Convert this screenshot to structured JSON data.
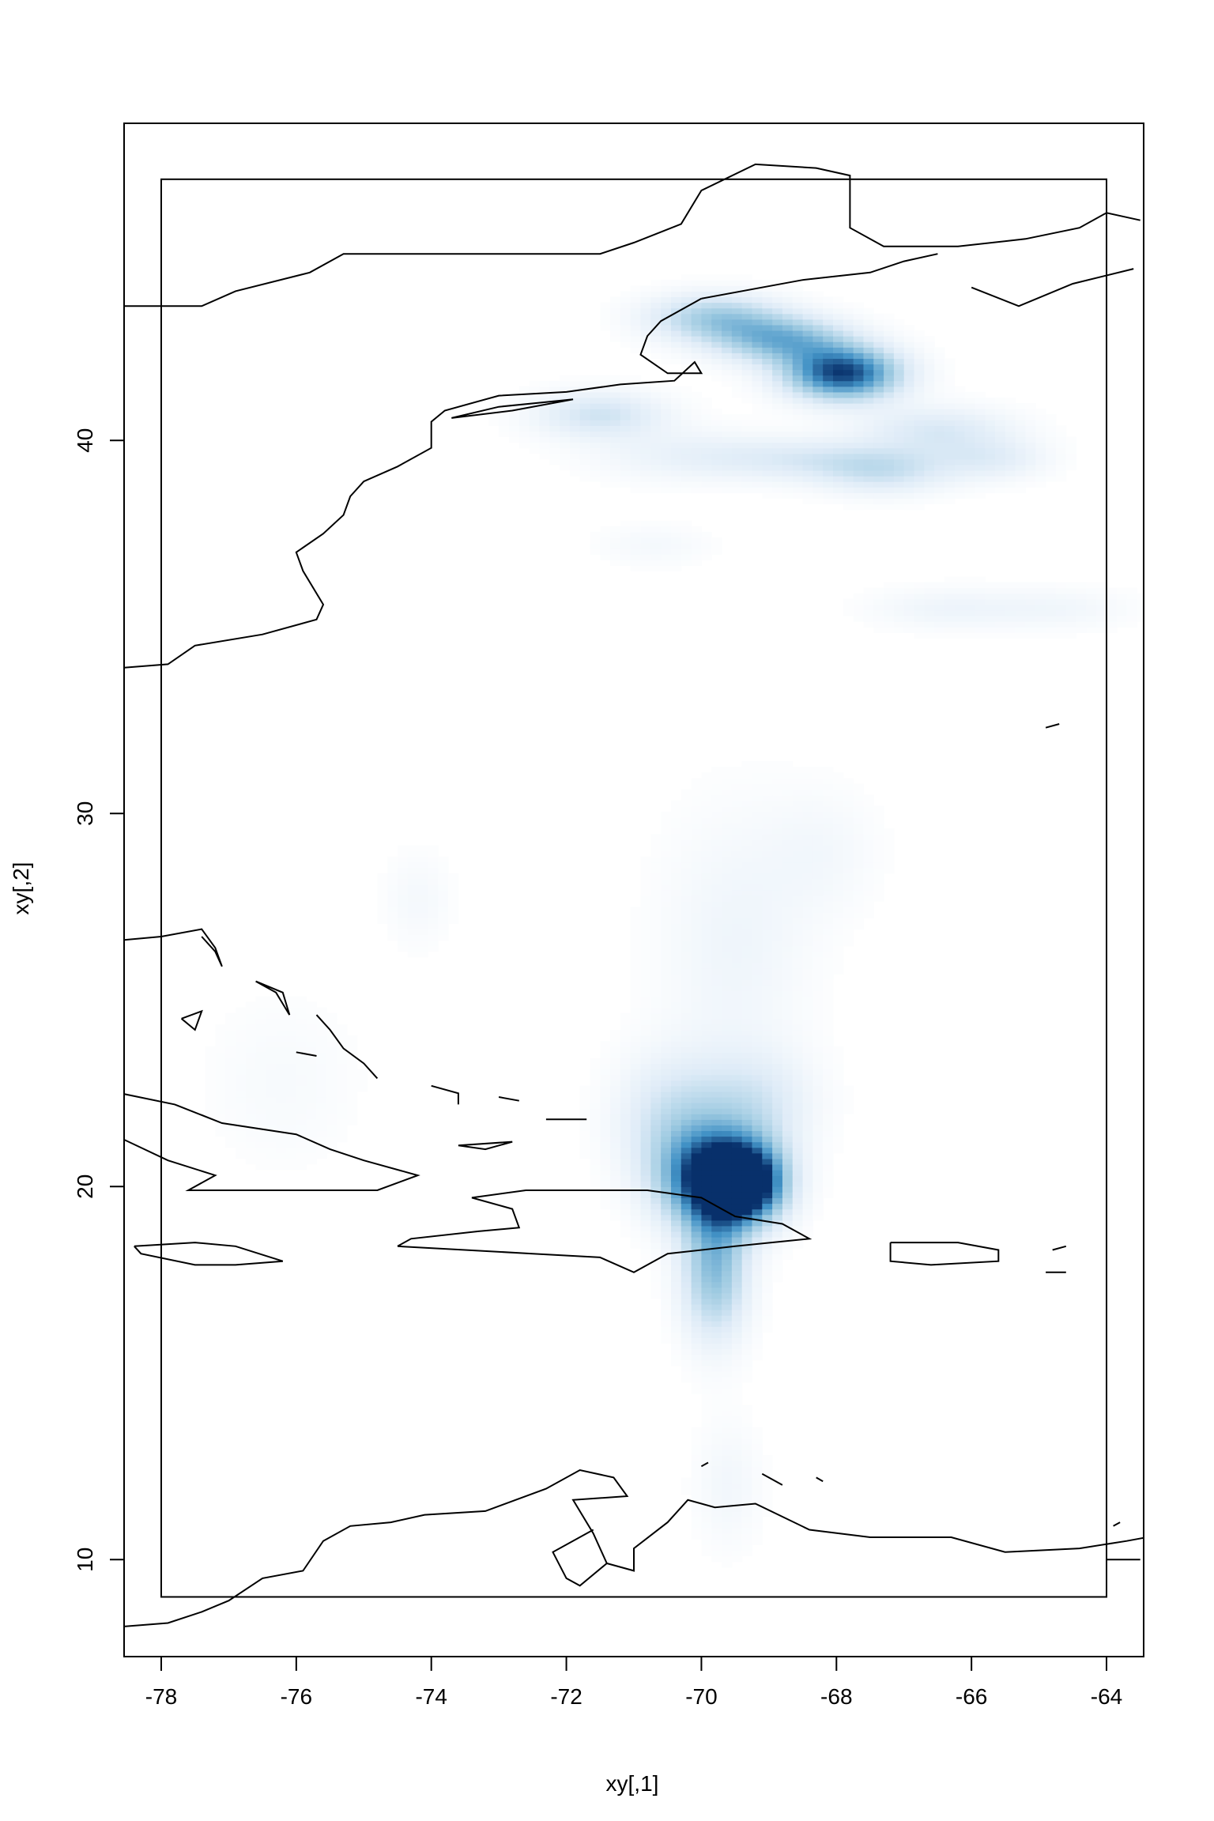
{
  "chart_data": {
    "type": "heatmap",
    "title": "",
    "xlabel": "xy[,1]",
    "ylabel": "xy[,2]",
    "xlim": [
      -78.55,
      -63.45
    ],
    "ylim": [
      7.4,
      48.5
    ],
    "x_ticks": [
      -78,
      -76,
      -74,
      -72,
      -70,
      -68,
      -66,
      -64
    ],
    "y_ticks": [
      10,
      20,
      30,
      40
    ],
    "x_tick_labels": [
      "-78",
      "-76",
      "-74",
      "-72",
      "-70",
      "-68",
      "-66",
      "-64"
    ],
    "y_tick_labels": [
      "10",
      "20",
      "30",
      "40"
    ],
    "inner_box": {
      "x": [
        -78,
        -64
      ],
      "y": [
        9,
        47
      ]
    },
    "color_scale": [
      "#ffffff",
      "#deebf7",
      "#9ecae1",
      "#4292c6",
      "#08306b"
    ],
    "density_peaks": [
      {
        "x": -69.8,
        "y": 20.2,
        "intensity": 1.0,
        "spread_x": 0.55,
        "spread_y": 0.9
      },
      {
        "x": -69.3,
        "y": 20.1,
        "intensity": 0.85,
        "spread_x": 0.4,
        "spread_y": 0.7
      },
      {
        "x": -69.8,
        "y": 17.8,
        "intensity": 0.55,
        "spread_x": 0.35,
        "spread_y": 1.3
      },
      {
        "x": -70.4,
        "y": 21.8,
        "intensity": 0.3,
        "spread_x": 0.6,
        "spread_y": 1.2
      },
      {
        "x": -69.2,
        "y": 22.2,
        "intensity": 0.25,
        "spread_x": 0.6,
        "spread_y": 1.0
      },
      {
        "x": -69.5,
        "y": 26.5,
        "intensity": 0.12,
        "spread_x": 0.8,
        "spread_y": 2.5
      },
      {
        "x": -68.2,
        "y": 29.0,
        "intensity": 0.08,
        "spread_x": 0.6,
        "spread_y": 1.2
      },
      {
        "x": -69.6,
        "y": 12.0,
        "intensity": 0.1,
        "spread_x": 0.35,
        "spread_y": 1.2
      },
      {
        "x": -67.9,
        "y": 41.8,
        "intensity": 0.95,
        "spread_x": 0.6,
        "spread_y": 0.5
      },
      {
        "x": -68.8,
        "y": 42.7,
        "intensity": 0.55,
        "spread_x": 0.7,
        "spread_y": 0.45
      },
      {
        "x": -69.8,
        "y": 43.3,
        "intensity": 0.45,
        "spread_x": 0.7,
        "spread_y": 0.45
      },
      {
        "x": -71.5,
        "y": 40.7,
        "intensity": 0.3,
        "spread_x": 0.7,
        "spread_y": 0.45
      },
      {
        "x": -66.5,
        "y": 40.3,
        "intensity": 0.25,
        "spread_x": 0.8,
        "spread_y": 0.45
      },
      {
        "x": -67.3,
        "y": 39.2,
        "intensity": 0.3,
        "spread_x": 0.7,
        "spread_y": 0.45
      },
      {
        "x": -68.5,
        "y": 39.5,
        "intensity": 0.2,
        "spread_x": 0.9,
        "spread_y": 0.4
      },
      {
        "x": -65.7,
        "y": 39.5,
        "intensity": 0.2,
        "spread_x": 0.6,
        "spread_y": 0.4
      },
      {
        "x": -70.2,
        "y": 39.6,
        "intensity": 0.15,
        "spread_x": 1.0,
        "spread_y": 0.5
      },
      {
        "x": -66.4,
        "y": 35.5,
        "intensity": 0.12,
        "spread_x": 0.8,
        "spread_y": 0.4
      },
      {
        "x": -64.7,
        "y": 35.5,
        "intensity": 0.1,
        "spread_x": 0.8,
        "spread_y": 0.4
      },
      {
        "x": -70.7,
        "y": 37.2,
        "intensity": 0.08,
        "spread_x": 0.6,
        "spread_y": 0.4
      },
      {
        "x": -74.2,
        "y": 27.7,
        "intensity": 0.08,
        "spread_x": 0.35,
        "spread_y": 0.9
      },
      {
        "x": -76.2,
        "y": 22.8,
        "intensity": 0.06,
        "spread_x": 0.8,
        "spread_y": 1.6
      }
    ],
    "coastlines": [
      [
        [
          -78.6,
          43.6
        ],
        [
          -77.4,
          43.6
        ],
        [
          -76.9,
          44.0
        ],
        [
          -75.8,
          44.5
        ],
        [
          -75.3,
          45.0
        ],
        [
          -74.4,
          45.0
        ],
        [
          -71.5,
          45.0
        ],
        [
          -71.0,
          45.3
        ],
        [
          -70.3,
          45.8
        ],
        [
          -70.0,
          46.7
        ],
        [
          -69.2,
          47.4
        ],
        [
          -68.3,
          47.3
        ],
        [
          -67.8,
          47.1
        ],
        [
          -67.8,
          45.7
        ],
        [
          -67.3,
          45.2
        ],
        [
          -66.2,
          45.2
        ],
        [
          -65.2,
          45.4
        ],
        [
          -64.4,
          45.7
        ],
        [
          -64.0,
          46.1
        ],
        [
          -63.5,
          45.9
        ]
      ],
      [
        [
          -70.0,
          43.8
        ],
        [
          -70.6,
          43.2
        ],
        [
          -70.8,
          42.8
        ],
        [
          -70.9,
          42.3
        ],
        [
          -70.5,
          41.8
        ],
        [
          -70.0,
          41.8
        ],
        [
          -70.1,
          42.1
        ],
        [
          -70.4,
          41.6
        ],
        [
          -71.2,
          41.5
        ],
        [
          -72.0,
          41.3
        ],
        [
          -73.0,
          41.2
        ],
        [
          -73.8,
          40.8
        ],
        [
          -74.0,
          40.5
        ],
        [
          -74.0,
          39.8
        ],
        [
          -74.5,
          39.3
        ],
        [
          -75.0,
          38.9
        ],
        [
          -75.2,
          38.5
        ],
        [
          -75.3,
          38.0
        ],
        [
          -75.6,
          37.5
        ],
        [
          -76.0,
          37.0
        ],
        [
          -75.9,
          36.5
        ],
        [
          -75.6,
          35.6
        ],
        [
          -75.7,
          35.2
        ],
        [
          -76.5,
          34.8
        ],
        [
          -77.5,
          34.5
        ],
        [
          -77.9,
          34.0
        ],
        [
          -78.6,
          33.9
        ]
      ],
      [
        [
          -71.9,
          41.1
        ],
        [
          -73.0,
          40.9
        ],
        [
          -73.7,
          40.6
        ],
        [
          -72.8,
          40.8
        ],
        [
          -71.9,
          41.1
        ]
      ],
      [
        [
          -70.0,
          43.8
        ],
        [
          -68.5,
          44.3
        ],
        [
          -67.5,
          44.5
        ],
        [
          -67.0,
          44.8
        ],
        [
          -66.5,
          45.0
        ]
      ],
      [
        [
          -66.0,
          44.1
        ],
        [
          -65.3,
          43.6
        ],
        [
          -64.5,
          44.2
        ],
        [
          -63.6,
          44.6
        ]
      ],
      [
        [
          -64.7,
          32.4
        ],
        [
          -64.9,
          32.3
        ]
      ],
      [
        [
          -78.6,
          26.6
        ],
        [
          -78.0,
          26.7
        ],
        [
          -77.4,
          26.9
        ],
        [
          -77.2,
          26.4
        ],
        [
          -77.1,
          25.9
        ],
        [
          -77.2,
          26.3
        ],
        [
          -77.4,
          26.7
        ]
      ],
      [
        [
          -77.7,
          24.5
        ],
        [
          -77.4,
          24.7
        ],
        [
          -77.5,
          24.2
        ],
        [
          -77.7,
          24.5
        ]
      ],
      [
        [
          -76.6,
          25.5
        ],
        [
          -76.2,
          25.2
        ],
        [
          -76.1,
          24.6
        ],
        [
          -76.3,
          25.2
        ],
        [
          -76.6,
          25.5
        ]
      ],
      [
        [
          -75.7,
          24.6
        ],
        [
          -75.5,
          24.2
        ],
        [
          -75.3,
          23.7
        ],
        [
          -75.0,
          23.3
        ],
        [
          -74.8,
          22.9
        ]
      ],
      [
        [
          -76.0,
          23.6
        ],
        [
          -75.7,
          23.5
        ]
      ],
      [
        [
          -74.0,
          22.7
        ],
        [
          -73.6,
          22.5
        ],
        [
          -73.6,
          22.2
        ]
      ],
      [
        [
          -73.0,
          22.4
        ],
        [
          -72.7,
          22.3
        ]
      ],
      [
        [
          -72.3,
          21.8
        ],
        [
          -71.7,
          21.8
        ]
      ],
      [
        [
          -73.6,
          21.1
        ],
        [
          -73.2,
          21.0
        ],
        [
          -72.8,
          21.2
        ],
        [
          -73.6,
          21.1
        ]
      ],
      [
        [
          -78.6,
          22.5
        ],
        [
          -77.8,
          22.2
        ],
        [
          -77.1,
          21.7
        ],
        [
          -76.0,
          21.4
        ],
        [
          -75.5,
          21.0
        ],
        [
          -75.0,
          20.7
        ],
        [
          -74.2,
          20.3
        ],
        [
          -74.8,
          19.9
        ],
        [
          -75.8,
          19.9
        ],
        [
          -76.6,
          19.9
        ],
        [
          -77.6,
          19.9
        ],
        [
          -77.2,
          20.3
        ],
        [
          -77.9,
          20.7
        ],
        [
          -78.6,
          21.3
        ]
      ],
      [
        [
          -78.4,
          18.4
        ],
        [
          -77.5,
          18.5
        ],
        [
          -76.9,
          18.4
        ],
        [
          -76.2,
          18.0
        ],
        [
          -76.9,
          17.9
        ],
        [
          -77.5,
          17.9
        ],
        [
          -78.3,
          18.2
        ],
        [
          -78.4,
          18.4
        ]
      ],
      [
        [
          -74.5,
          18.4
        ],
        [
          -73.5,
          18.3
        ],
        [
          -72.5,
          18.2
        ],
        [
          -71.5,
          18.1
        ],
        [
          -71.0,
          17.7
        ],
        [
          -70.5,
          18.2
        ],
        [
          -69.5,
          18.4
        ],
        [
          -68.4,
          18.6
        ],
        [
          -68.8,
          19.0
        ],
        [
          -69.5,
          19.2
        ],
        [
          -70.0,
          19.7
        ],
        [
          -70.8,
          19.9
        ],
        [
          -71.5,
          19.9
        ],
        [
          -72.6,
          19.9
        ],
        [
          -73.4,
          19.7
        ],
        [
          -72.8,
          19.4
        ],
        [
          -72.7,
          18.9
        ],
        [
          -73.3,
          18.8
        ],
        [
          -74.3,
          18.6
        ],
        [
          -74.5,
          18.4
        ]
      ],
      [
        [
          -67.2,
          18.5
        ],
        [
          -66.2,
          18.5
        ],
        [
          -65.6,
          18.3
        ],
        [
          -65.6,
          18.0
        ],
        [
          -66.6,
          17.9
        ],
        [
          -67.2,
          18.0
        ],
        [
          -67.2,
          18.5
        ]
      ],
      [
        [
          -64.8,
          18.3
        ],
        [
          -64.6,
          18.4
        ]
      ],
      [
        [
          -64.9,
          17.7
        ],
        [
          -64.6,
          17.7
        ]
      ],
      [
        [
          -78.6,
          8.2
        ],
        [
          -77.9,
          8.3
        ],
        [
          -77.4,
          8.6
        ],
        [
          -77.0,
          8.9
        ],
        [
          -76.5,
          9.5
        ],
        [
          -75.9,
          9.7
        ],
        [
          -75.6,
          10.5
        ],
        [
          -75.2,
          10.9
        ],
        [
          -74.6,
          11.0
        ],
        [
          -74.1,
          11.2
        ],
        [
          -73.2,
          11.3
        ],
        [
          -72.3,
          11.9
        ],
        [
          -71.8,
          12.4
        ],
        [
          -71.3,
          12.2
        ],
        [
          -71.1,
          11.7
        ],
        [
          -71.9,
          11.6
        ],
        [
          -71.6,
          10.7
        ],
        [
          -71.4,
          9.9
        ],
        [
          -71.0,
          9.7
        ],
        [
          -71.0,
          10.3
        ],
        [
          -70.5,
          11.0
        ],
        [
          -70.2,
          11.6
        ],
        [
          -69.8,
          11.4
        ],
        [
          -69.2,
          11.5
        ],
        [
          -68.4,
          10.8
        ],
        [
          -67.5,
          10.6
        ],
        [
          -66.3,
          10.6
        ],
        [
          -65.5,
          10.2
        ],
        [
          -64.4,
          10.3
        ],
        [
          -63.7,
          10.5
        ],
        [
          -63.4,
          10.6
        ]
      ],
      [
        [
          -71.4,
          9.9
        ],
        [
          -71.8,
          9.3
        ],
        [
          -72.0,
          9.5
        ],
        [
          -72.2,
          10.2
        ],
        [
          -71.6,
          10.8
        ]
      ],
      [
        [
          -69.9,
          12.6
        ],
        [
          -70.0,
          12.5
        ]
      ],
      [
        [
          -69.1,
          12.3
        ],
        [
          -68.8,
          12.0
        ]
      ],
      [
        [
          -68.3,
          12.2
        ],
        [
          -68.2,
          12.1
        ]
      ],
      [
        [
          -63.8,
          11.0
        ],
        [
          -63.9,
          10.9
        ]
      ],
      [
        [
          -63.5,
          10.0
        ],
        [
          -64.0,
          10.0
        ]
      ]
    ]
  }
}
